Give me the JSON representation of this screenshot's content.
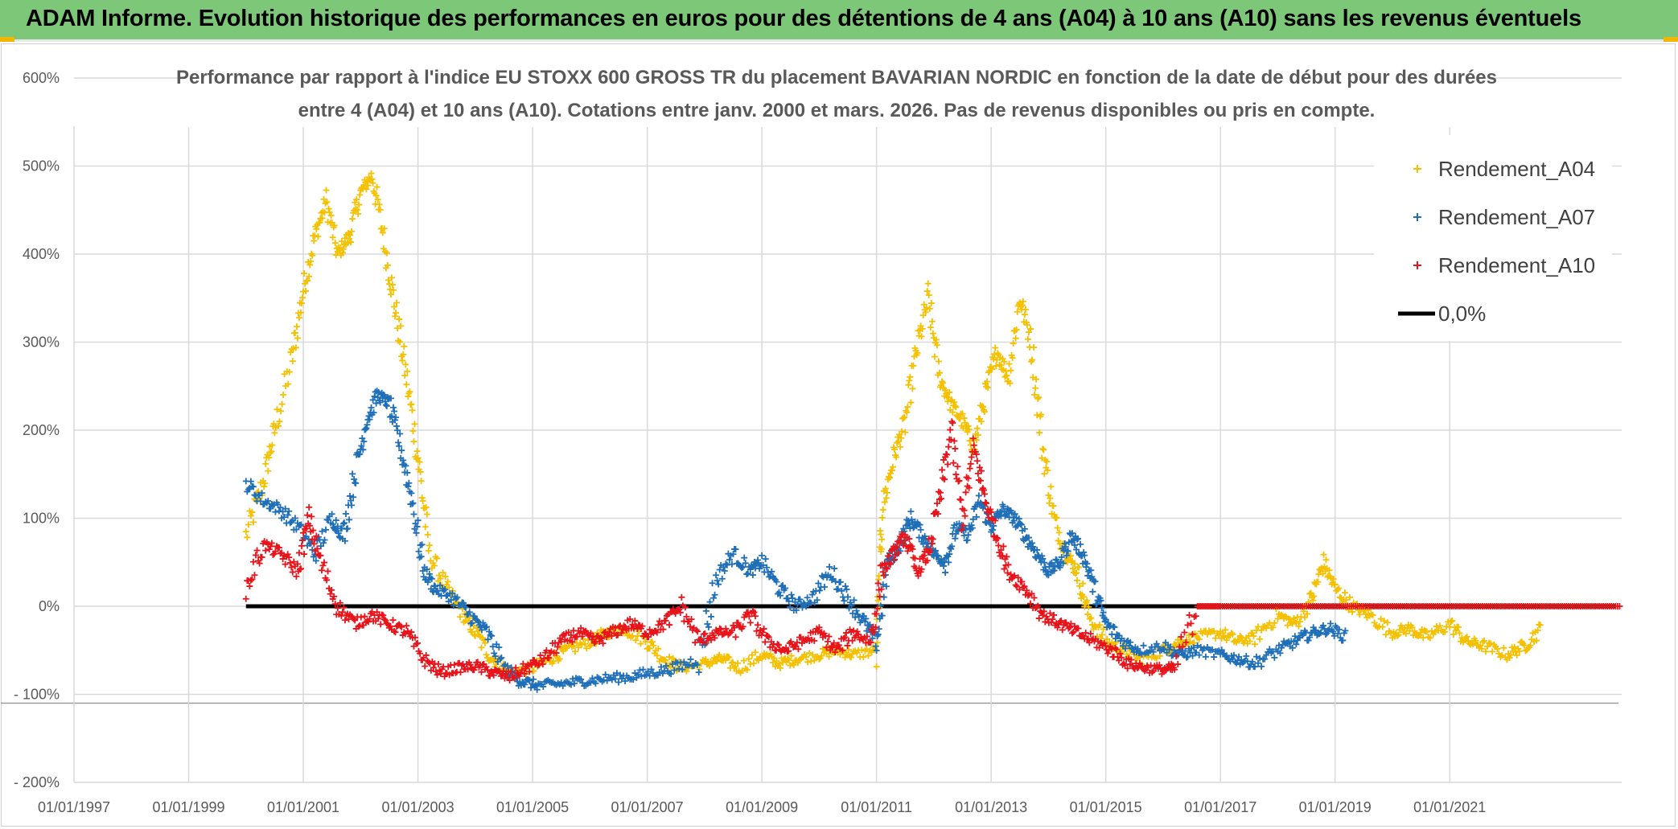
{
  "banner": {
    "title": "ADAM Informe. Evolution historique des performances en euros pour des détentions de 4 ans (A04) à 10 ans (A10) sans les revenus éventuels",
    "background": "#7dc878"
  },
  "chart_data": {
    "type": "scatter",
    "title_line1": "Performance par rapport à l'indice EU STOXX 600 GROSS TR  du placement BAVARIAN NORDIC en fonction de la date de début pour des durées",
    "title_line2": "entre 4 (A04) et 10 ans (A10). Cotations entre janv. 2000 et mars. 2026. Pas de revenus disponibles ou pris en compte.",
    "xlabel": "",
    "ylabel": "",
    "x_range": [
      1997.0,
      2024.0
    ],
    "y_range": [
      -200,
      600
    ],
    "grid": true,
    "legend_position": "top-right",
    "x_tick_labels": [
      "01/01/1997",
      "01/01/1999",
      "01/01/2001",
      "01/01/2003",
      "01/01/2005",
      "01/01/2007",
      "01/01/2009",
      "01/01/2011",
      "01/01/2013",
      "01/01/2015",
      "01/01/2017",
      "01/01/2019",
      "01/01/2021"
    ],
    "x_tick_values": [
      1997,
      1999,
      2001,
      2003,
      2005,
      2007,
      2009,
      2011,
      2013,
      2015,
      2017,
      2019,
      2021
    ],
    "y_tick_labels": [
      "600%",
      "500%",
      "400%",
      "300%",
      "200%",
      "100%",
      "0%",
      "- 100%",
      "- 200%"
    ],
    "y_tick_values": [
      600,
      500,
      400,
      300,
      200,
      100,
      0,
      -100,
      -200
    ],
    "series": [
      {
        "name": "Rendement_A04",
        "color": "#f5c000",
        "marker": "+",
        "x": [
          2000.0,
          2000.3,
          2000.5,
          2000.8,
          2001.0,
          2001.2,
          2001.4,
          2001.6,
          2001.8,
          2002.0,
          2002.2,
          2002.4,
          2002.6,
          2002.8,
          2003.0,
          2003.2,
          2003.5,
          2003.8,
          2004.0,
          2004.3,
          2004.6,
          2005.0,
          2005.3,
          2005.6,
          2006.0,
          2006.3,
          2006.6,
          2007.0,
          2007.3,
          2007.6,
          2008.0,
          2008.3,
          2008.6,
          2009.0,
          2009.3,
          2009.6,
          2010.0,
          2010.3,
          2010.6,
          2011.0,
          2011.1,
          2011.3,
          2011.5,
          2011.7,
          2011.9,
          2012.1,
          2012.3,
          2012.5,
          2012.7,
          2012.9,
          2013.1,
          2013.3,
          2013.5,
          2013.7,
          2013.9,
          2014.1,
          2014.3,
          2014.5,
          2014.7,
          2015.0,
          2015.3,
          2015.6,
          2016.0,
          2016.3,
          2016.6,
          2017.0,
          2017.3,
          2017.6,
          2018.0,
          2018.3,
          2018.6,
          2018.8,
          2019.0,
          2019.3,
          2019.6,
          2020.0,
          2020.3,
          2020.6,
          2021.0,
          2021.3,
          2021.6,
          2022.0,
          2022.3,
          2022.6
        ],
        "y": [
          80,
          140,
          200,
          280,
          360,
          420,
          460,
          400,
          420,
          470,
          490,
          420,
          340,
          260,
          170,
          60,
          20,
          -10,
          -30,
          -60,
          -75,
          -70,
          -60,
          -50,
          -40,
          -30,
          -25,
          -40,
          -60,
          -70,
          -65,
          -60,
          -70,
          -55,
          -65,
          -60,
          -55,
          -50,
          -55,
          -50,
          110,
          170,
          210,
          290,
          350,
          260,
          230,
          210,
          180,
          240,
          290,
          260,
          350,
          300,
          180,
          100,
          60,
          40,
          -10,
          -40,
          -50,
          -60,
          -50,
          -40,
          -35,
          -30,
          -40,
          -35,
          -10,
          -20,
          10,
          50,
          20,
          0,
          -10,
          -30,
          -25,
          -35,
          -20,
          -40,
          -45,
          -55,
          -45,
          -25
        ]
      },
      {
        "name": "Rendement_A07",
        "color": "#1f6fb8",
        "marker": "+",
        "x": [
          2000.0,
          2000.3,
          2000.6,
          2000.9,
          2001.2,
          2001.5,
          2001.7,
          2001.9,
          2002.1,
          2002.3,
          2002.5,
          2002.7,
          2002.9,
          2003.1,
          2003.3,
          2003.6,
          2003.9,
          2004.2,
          2004.5,
          2004.8,
          2005.1,
          2005.5,
          2005.9,
          2006.3,
          2006.7,
          2007.1,
          2007.5,
          2007.9,
          2008.2,
          2008.5,
          2008.8,
          2009.0,
          2009.3,
          2009.6,
          2009.9,
          2010.2,
          2010.5,
          2010.8,
          2011.0,
          2011.2,
          2011.4,
          2011.6,
          2011.8,
          2012.0,
          2012.2,
          2012.4,
          2012.6,
          2012.8,
          2013.0,
          2013.2,
          2013.4,
          2013.6,
          2013.8,
          2014.0,
          2014.2,
          2014.4,
          2014.6,
          2014.8,
          2015.0,
          2015.3,
          2015.6,
          2016.0,
          2016.3,
          2016.6,
          2017.0,
          2017.3,
          2017.6,
          2018.0,
          2018.3,
          2018.6,
          2018.9,
          2019.2
        ],
        "y": [
          140,
          120,
          110,
          90,
          60,
          100,
          80,
          150,
          210,
          240,
          230,
          180,
          120,
          40,
          20,
          10,
          -10,
          -30,
          -70,
          -85,
          -90,
          -88,
          -85,
          -82,
          -80,
          -75,
          -70,
          -60,
          30,
          60,
          40,
          50,
          20,
          0,
          10,
          40,
          10,
          -20,
          -40,
          50,
          70,
          100,
          80,
          60,
          50,
          90,
          80,
          120,
          90,
          110,
          100,
          80,
          60,
          40,
          50,
          80,
          60,
          20,
          -20,
          -40,
          -50,
          -45,
          -55,
          -50,
          -55,
          -60,
          -65,
          -50,
          -40,
          -30,
          -25,
          -35
        ]
      },
      {
        "name": "Rendement_A10",
        "color": "#e8141b",
        "marker": "+",
        "x": [
          2000.0,
          2000.3,
          2000.6,
          2000.9,
          2001.1,
          2001.3,
          2001.6,
          2001.9,
          2002.2,
          2002.5,
          2002.8,
          2003.1,
          2003.4,
          2003.7,
          2004.0,
          2004.3,
          2004.6,
          2004.9,
          2005.2,
          2005.5,
          2005.8,
          2006.1,
          2006.4,
          2006.7,
          2007.0,
          2007.3,
          2007.6,
          2007.9,
          2008.2,
          2008.5,
          2008.8,
          2009.1,
          2009.4,
          2009.7,
          2010.0,
          2010.3,
          2010.6,
          2010.9,
          2011.1,
          2011.3,
          2011.5,
          2011.7,
          2011.9,
          2012.1,
          2012.3,
          2012.5,
          2012.7,
          2012.9,
          2013.1,
          2013.3,
          2013.6,
          2013.9,
          2014.2,
          2014.5,
          2014.8,
          2015.1,
          2015.4,
          2015.7,
          2016.0,
          2016.2,
          2016.6,
          2017.0,
          2017.5,
          2018.0,
          2018.5,
          2019.0,
          2019.5,
          2020.0,
          2020.5,
          2021.0,
          2021.5,
          2022.0,
          2022.5,
          2023.0,
          2023.5,
          2024.0
        ],
        "y": [
          20,
          70,
          60,
          40,
          100,
          50,
          0,
          -20,
          -10,
          -20,
          -30,
          -60,
          -75,
          -70,
          -68,
          -75,
          -80,
          -70,
          -60,
          -40,
          -30,
          -40,
          -30,
          -20,
          -30,
          -20,
          0,
          -40,
          -30,
          -30,
          -10,
          -40,
          -50,
          -40,
          -30,
          -50,
          -30,
          -40,
          40,
          60,
          80,
          40,
          60,
          120,
          200,
          100,
          180,
          120,
          80,
          40,
          20,
          -10,
          -20,
          -30,
          -40,
          -50,
          -65,
          -70,
          -72,
          -70,
          0,
          0,
          0,
          0,
          0,
          0,
          0,
          0,
          0,
          0,
          0,
          0,
          0,
          0,
          0,
          0
        ]
      },
      {
        "name": "0,0%",
        "color": "#000000",
        "marker": "line",
        "x": [
          2000.0,
          2023.9
        ],
        "y": [
          0,
          0
        ]
      }
    ]
  }
}
